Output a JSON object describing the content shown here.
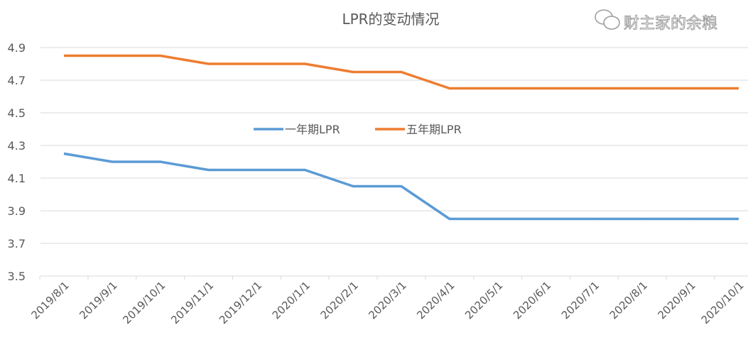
{
  "chart_data": {
    "type": "line",
    "title": "LPR的变动情况",
    "categories": [
      "2019/8/1",
      "2019/9/1",
      "2019/10/1",
      "2019/11/1",
      "2019/12/1",
      "2020/1/1",
      "2020/2/1",
      "2020/3/1",
      "2020/4/1",
      "2020/5/1",
      "2020/6/1",
      "2020/7/1",
      "2020/8/1",
      "2020/9/1",
      "2020/10/1"
    ],
    "series": [
      {
        "name": "一年期LPR",
        "color": "#5b9bd5",
        "values": [
          4.25,
          4.2,
          4.2,
          4.15,
          4.15,
          4.15,
          4.05,
          4.05,
          3.85,
          3.85,
          3.85,
          3.85,
          3.85,
          3.85,
          3.85
        ]
      },
      {
        "name": "五年期LPR",
        "color": "#ed7d31",
        "values": [
          4.85,
          4.85,
          4.85,
          4.8,
          4.8,
          4.8,
          4.75,
          4.75,
          4.65,
          4.65,
          4.65,
          4.65,
          4.65,
          4.65,
          4.65
        ]
      }
    ],
    "yticks": [
      "3.5",
      "3.7",
      "3.9",
      "4.1",
      "4.3",
      "4.5",
      "4.7",
      "4.9"
    ],
    "ylim": [
      3.5,
      4.9
    ],
    "grid": true,
    "legend": "center"
  },
  "watermark": "财主家的余粮"
}
